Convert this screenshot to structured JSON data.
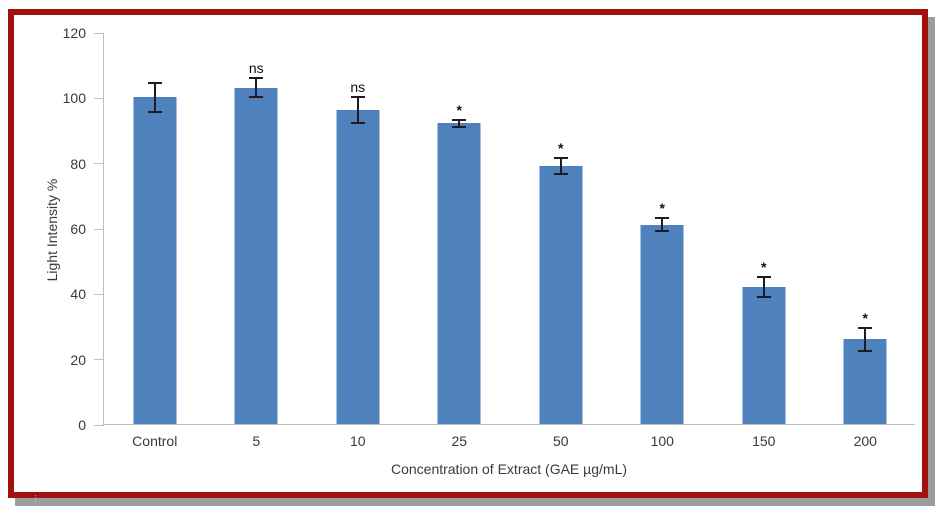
{
  "chart_data": {
    "type": "bar",
    "title": "",
    "xlabel": "Concentration of Extract (GAE µg/mL)",
    "ylabel": "Light Intensity %",
    "categories": [
      "Control",
      "5",
      "10",
      "25",
      "50",
      "100",
      "150",
      "200"
    ],
    "values": [
      100,
      103,
      96,
      92,
      79,
      61,
      42,
      26
    ],
    "error_bars": [
      4.5,
      3,
      4,
      1,
      2.5,
      2,
      3,
      3.5
    ],
    "annotations": [
      "",
      "ns",
      "ns",
      "*",
      "*",
      "*",
      "*",
      "*"
    ],
    "ylim": [
      0,
      120
    ],
    "yticks": [
      0,
      20,
      40,
      60,
      80,
      100,
      120
    ],
    "grid": false,
    "legend": "none",
    "bar_color": "#4F81BD",
    "error_bar_color": "#1c1c24",
    "axis_color": "#bfbfbf",
    "text_color": "#3a3a3a"
  },
  "frame": {
    "border_color": "#A21010",
    "shadow_color": "#9c9c9c",
    "background": "#ffffff",
    "caret_artifact_color": "#8ab0d6"
  }
}
